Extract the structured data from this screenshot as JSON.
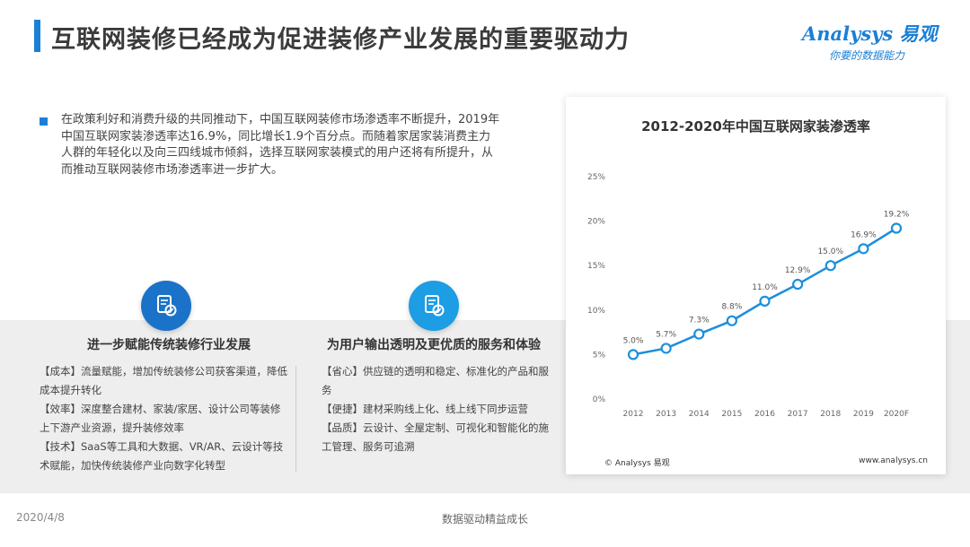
{
  "header": {
    "title": "互联网装修已经成为促进装修产业发展的重要驱动力"
  },
  "logo": {
    "brand": "Analysys 易观",
    "tagline": "你要的数据能力"
  },
  "intro": {
    "text": "在政策利好和消费升级的共同推动下，中国互联网装修市场渗透率不断提升，2019年中国互联网家装渗透率达16.9%，同比增长1.9个百分点。而随着家居家装消费主力人群的年轻化以及向三四线城市倾斜，选择互联网家装模式的用户还将有所提升，从而推动互联网装修市场渗透率进一步扩大。"
  },
  "cards": [
    {
      "icon": "document-check-icon",
      "title": "进一步赋能传统装修行业发展",
      "lines": [
        "【成本】流量赋能，增加传统装修公司获客渠道，降低成本提升转化",
        "【效率】深度整合建材、家装/家居、设计公司等装修上下游产业资源，提升装修效率",
        "【技术】SaaS等工具和大数据、VR/AR、云设计等技术赋能，加快传统装修产业向数字化转型"
      ]
    },
    {
      "icon": "document-check-icon",
      "title": "为用户输出透明及更优质的服务和体验",
      "lines": [
        "【省心】供应链的透明和稳定、标准化的产品和服务",
        "【便捷】建材采购线上化、线上线下同步运营",
        "【品质】云设计、全屋定制、可视化和智能化的施工管理、服务可追溯"
      ]
    }
  ],
  "chart_data": {
    "type": "line",
    "title": "2012-2020年中国互联网家装渗透率",
    "categories": [
      "2012",
      "2013",
      "2014",
      "2015",
      "2016",
      "2017",
      "2018",
      "2019",
      "2020F"
    ],
    "series": [
      {
        "values": [
          5.0,
          5.7,
          7.3,
          8.8,
          11.0,
          12.9,
          15.0,
          16.9,
          19.2
        ]
      }
    ],
    "data_labels": [
      "5.0%",
      "5.7%",
      "7.3%",
      "8.8%",
      "11.0%",
      "12.9%",
      "15.0%",
      "16.9%",
      "19.2%"
    ],
    "ylim": [
      0,
      25
    ],
    "yticks": [
      0,
      5,
      10,
      15,
      20,
      25
    ],
    "ytick_labels": [
      "0%",
      "5%",
      "10%",
      "15%",
      "20%",
      "25%"
    ],
    "grid": false,
    "line_color": "#1b8fdc",
    "marker_fill": "#ffffff"
  },
  "chart_footer": {
    "source": "© Analysys 易观",
    "site": "www.analysys.cn"
  },
  "footer": {
    "date": "2020/4/8",
    "center": "数据驱动精益成长"
  }
}
